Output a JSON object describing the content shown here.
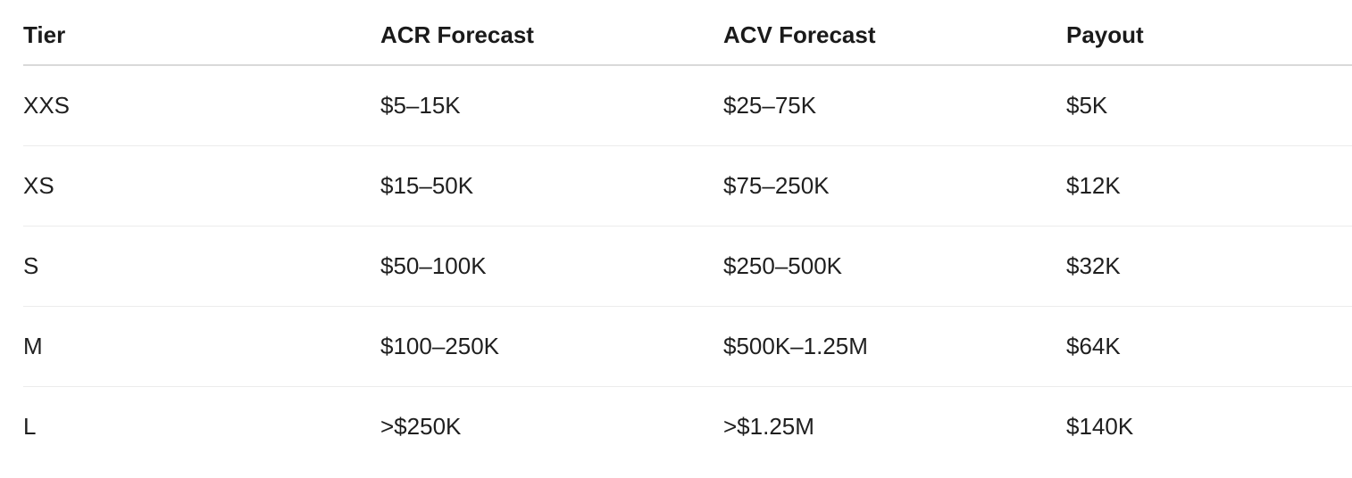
{
  "table": {
    "headers": [
      "Tier",
      "ACR Forecast",
      "ACV Forecast",
      "Payout"
    ],
    "rows": [
      [
        "XXS",
        "$5–15K",
        "$25–75K",
        "$5K"
      ],
      [
        "XS",
        "$15–50K",
        "$75–250K",
        "$12K"
      ],
      [
        "S",
        "$50–100K",
        "$250–500K",
        "$32K"
      ],
      [
        "M",
        "$100–250K",
        "$500K–1.25M",
        "$64K"
      ],
      [
        "L",
        ">$250K",
        ">$1.25M",
        "$140K"
      ]
    ]
  }
}
